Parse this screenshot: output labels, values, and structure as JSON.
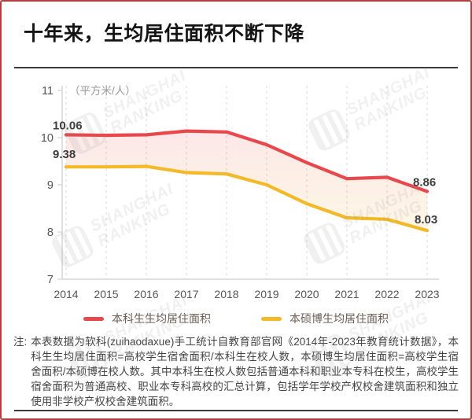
{
  "header": {
    "title": "十年来，生均居住面积不断下降"
  },
  "chart_data": {
    "type": "line",
    "title": "十年来，生均居住面积不断下降",
    "unit_label": "（平方米/人）",
    "x": [
      2014,
      2015,
      2016,
      2017,
      2018,
      2019,
      2020,
      2021,
      2022,
      2023
    ],
    "series": [
      {
        "name": "本科生生均居住面积",
        "color": "#E8474C",
        "values": [
          10.06,
          10.05,
          10.06,
          10.14,
          10.12,
          9.85,
          9.47,
          9.13,
          9.16,
          8.86
        ]
      },
      {
        "name": "本硕博生均居住面积",
        "color": "#F2B928",
        "values": [
          9.38,
          9.38,
          9.39,
          9.26,
          9.23,
          9.0,
          8.6,
          8.3,
          8.27,
          8.03
        ]
      }
    ],
    "ylim": [
      7,
      11
    ],
    "yticks": [
      7,
      8,
      9,
      10,
      11
    ],
    "grid": "vertical-dashed",
    "legend_position": "bottom",
    "band_fill": {
      "top": "rgba(233,72,76,0.13)",
      "bottom": "rgba(242,185,40,0.12)"
    },
    "point_labels": [
      {
        "series": 0,
        "x": 2014,
        "text": "10.06"
      },
      {
        "series": 1,
        "x": 2014,
        "text": "9.38"
      },
      {
        "series": 0,
        "x": 2023,
        "text": "8.86"
      },
      {
        "series": 1,
        "x": 2023,
        "text": "8.03"
      }
    ]
  },
  "legend": {
    "items": [
      {
        "label": "本科生生均居住面积",
        "color": "#E8474C"
      },
      {
        "label": "本硕博生均居住面积",
        "color": "#F2B928"
      }
    ]
  },
  "note": {
    "prefix": "注:",
    "text": "本表数据为软科(zuihaodaxue)手工统计自教育部官网《2014年-2023年教育统计数据》，本科生生均居住面积=高校学生宿舍面积/本科生在校人数，本硕博生均居住面积=高校学生宿舍面积/本硕博在校人数。其中本科生在校人数包括普通本科和职业本专科在校生，高校学生宿舍面积为普通高校、职业本专科高校的汇总计算，包括学年学校产权校舍建筑面积和独立使用非学校产权校舍建筑面积。"
  },
  "watermark": {
    "line1": "SHANGHAI",
    "line2": "RANKING",
    "logo": "软科"
  },
  "colors": {
    "border": "#B0403E",
    "divider": "#3A3A3A",
    "red_series": "#E8474C",
    "yellow_series": "#F2B928"
  }
}
